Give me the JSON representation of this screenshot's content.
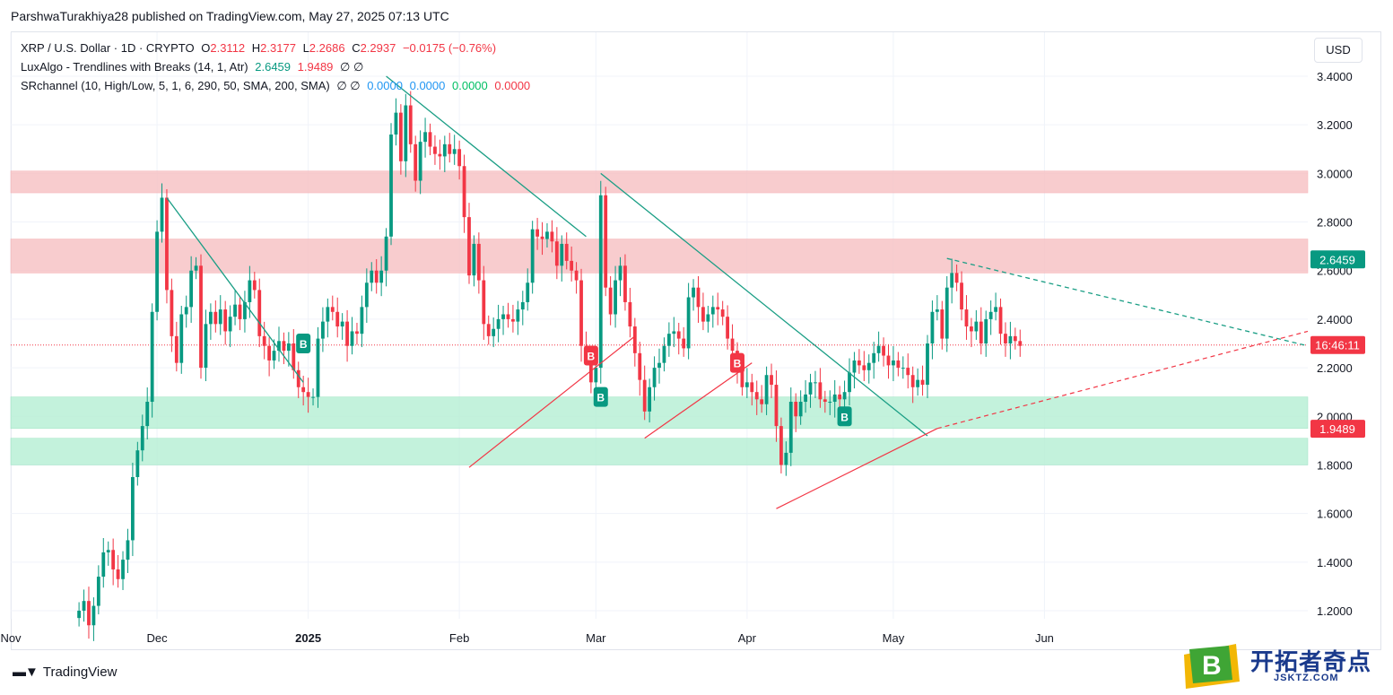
{
  "header": {
    "published": "ParshwaTurakhiya28 published on TradingView.com, May 27, 2025 07:13 UTC"
  },
  "legend": {
    "symbol": "XRP / U.S. Dollar · 1D · CRYPTO",
    "o_label": "O",
    "o_value": "2.3112",
    "h_label": "H",
    "h_value": "2.3177",
    "l_label": "L",
    "l_value": "2.2686",
    "c_label": "C",
    "c_value": "2.2937",
    "change": "−0.0175 (−0.76%)",
    "indicator1_name": "LuxAlgo - Trendlines with Breaks (14, 1, Atr)",
    "indicator1_upper": "2.6459",
    "indicator1_lower": "1.9489",
    "indicator1_extra": "∅ ∅",
    "indicator2_name": "SRchannel (10, High/Low, 5, 1, 6, 290, 50, SMA, 200, SMA)",
    "indicator2_extra": "∅ ∅",
    "indicator2_v1": "0.0000",
    "indicator2_v2": "0.0000",
    "indicator2_v3": "0.0000",
    "indicator2_v4": "0.0000"
  },
  "currency_button": "USD",
  "footer": {
    "brand": "TradingView"
  },
  "watermark": {
    "text": "开拓者奇点",
    "url": "JSKTZ.COM",
    "letter": "B"
  },
  "colors": {
    "up": "#089981",
    "down": "#f23645",
    "resistance_zone": "#f7c4c6",
    "support_zone": "#b9f0d6",
    "trend_down": "#1a9e85",
    "trend_up": "#f23645"
  },
  "chart_data": {
    "type": "candlestick",
    "y_axis": {
      "ticks": [
        "3.4000",
        "3.2000",
        "3.0000",
        "2.8000",
        "2.6000",
        "2.4000",
        "2.2000",
        "2.0000",
        "1.8000",
        "1.6000",
        "1.4000",
        "1.2000"
      ],
      "range": [
        1.12,
        3.58
      ]
    },
    "x_axis": {
      "labels": [
        {
          "text": "Nov",
          "date": "2024-11-01"
        },
        {
          "text": "Dec",
          "date": "2024-12-01"
        },
        {
          "text": "2025",
          "date": "2025-01-01",
          "bold": true
        },
        {
          "text": "Feb",
          "date": "2025-02-01"
        },
        {
          "text": "Mar",
          "date": "2025-03-01"
        },
        {
          "text": "Apr",
          "date": "2025-04-01"
        },
        {
          "text": "May",
          "date": "2025-05-01"
        },
        {
          "text": "Jun",
          "date": "2025-06-01"
        }
      ],
      "range": [
        "2024-11-01",
        "2025-07-25"
      ]
    },
    "price_labels": [
      {
        "text": "2.6459",
        "value": 2.6459,
        "color": "#089981"
      },
      {
        "text": "16:46:11",
        "value": 2.2937,
        "color": "#f23645"
      },
      {
        "text": "1.9489",
        "value": 1.9489,
        "color": "#f23645"
      }
    ],
    "zones": [
      {
        "kind": "resistance",
        "from": 2.92,
        "to": 3.01
      },
      {
        "kind": "resistance",
        "from": 2.59,
        "to": 2.73
      },
      {
        "kind": "support",
        "from": 1.95,
        "to": 2.08
      },
      {
        "kind": "support",
        "from": 1.8,
        "to": 1.91
      }
    ],
    "current_price": 2.2937,
    "trendlines_down": [
      {
        "x1": "2024-12-03",
        "y1": 2.9,
        "x2": "2024-12-31",
        "y2": 2.14,
        "dashed": false
      },
      {
        "x1": "2025-01-17",
        "y1": 3.4,
        "x2": "2025-02-27",
        "y2": 2.74,
        "dashed": false
      },
      {
        "x1": "2025-03-02",
        "y1": 3.0,
        "x2": "2025-05-08",
        "y2": 1.92,
        "dashed": false
      },
      {
        "x1": "2025-05-12",
        "y1": 2.65,
        "x2": "2025-07-25",
        "y2": 2.29,
        "dashed": true
      }
    ],
    "trendlines_up": [
      {
        "x1": "2025-02-03",
        "y1": 1.79,
        "x2": "2025-03-09",
        "y2": 2.33,
        "dashed": false
      },
      {
        "x1": "2025-03-11",
        "y1": 1.91,
        "x2": "2025-04-02",
        "y2": 2.22,
        "dashed": false
      },
      {
        "x1": "2025-04-07",
        "y1": 1.62,
        "x2": "2025-05-10",
        "y2": 1.95,
        "dashed": false
      },
      {
        "x1": "2025-05-10",
        "y1": 1.95,
        "x2": "2025-07-25",
        "y2": 2.35,
        "dashed": true
      }
    ],
    "break_labels": [
      {
        "date": "2024-12-31",
        "price": 2.3,
        "text": "B",
        "color": "#089981"
      },
      {
        "date": "2025-02-28",
        "price": 2.25,
        "text": "B",
        "color": "#f23645"
      },
      {
        "date": "2025-03-02",
        "price": 2.08,
        "text": "B",
        "color": "#089981"
      },
      {
        "date": "2025-03-30",
        "price": 2.22,
        "text": "B",
        "color": "#f23645"
      },
      {
        "date": "2025-04-21",
        "price": 2.0,
        "text": "B",
        "color": "#089981"
      }
    ],
    "closes": [
      [
        "2024-11-15",
        1.2
      ],
      [
        "2024-11-16",
        1.24
      ],
      [
        "2024-11-17",
        1.14
      ],
      [
        "2024-11-18",
        1.22
      ],
      [
        "2024-11-19",
        1.34
      ],
      [
        "2024-11-20",
        1.44
      ],
      [
        "2024-11-21",
        1.45
      ],
      [
        "2024-11-22",
        1.37
      ],
      [
        "2024-11-23",
        1.33
      ],
      [
        "2024-11-24",
        1.41
      ],
      [
        "2024-11-25",
        1.49
      ],
      [
        "2024-11-26",
        1.75
      ],
      [
        "2024-11-27",
        1.86
      ],
      [
        "2024-11-28",
        1.96
      ],
      [
        "2024-11-29",
        2.06
      ],
      [
        "2024-11-30",
        2.43
      ],
      [
        "2024-12-01",
        2.76
      ],
      [
        "2024-12-02",
        2.9
      ],
      [
        "2024-12-03",
        2.52
      ],
      [
        "2024-12-04",
        2.33
      ],
      [
        "2024-12-05",
        2.22
      ],
      [
        "2024-12-06",
        2.42
      ],
      [
        "2024-12-07",
        2.45
      ],
      [
        "2024-12-08",
        2.6
      ],
      [
        "2024-12-09",
        2.62
      ],
      [
        "2024-12-10",
        2.2
      ],
      [
        "2024-12-11",
        2.38
      ],
      [
        "2024-12-12",
        2.43
      ],
      [
        "2024-12-13",
        2.38
      ],
      [
        "2024-12-14",
        2.44
      ],
      [
        "2024-12-15",
        2.35
      ],
      [
        "2024-12-16",
        2.41
      ],
      [
        "2024-12-17",
        2.46
      ],
      [
        "2024-12-18",
        2.4
      ],
      [
        "2024-12-19",
        2.47
      ],
      [
        "2024-12-20",
        2.56
      ],
      [
        "2024-12-21",
        2.52
      ],
      [
        "2024-12-22",
        2.33
      ],
      [
        "2024-12-23",
        2.29
      ],
      [
        "2024-12-24",
        2.23
      ],
      [
        "2024-12-25",
        2.27
      ],
      [
        "2024-12-26",
        2.31
      ],
      [
        "2024-12-27",
        2.27
      ],
      [
        "2024-12-28",
        2.3
      ],
      [
        "2024-12-29",
        2.19
      ],
      [
        "2024-12-30",
        2.12
      ],
      [
        "2024-12-31",
        2.1
      ],
      [
        "2025-01-01",
        2.08
      ],
      [
        "2025-01-02",
        2.08
      ],
      [
        "2025-01-03",
        2.32
      ],
      [
        "2025-01-04",
        2.39
      ],
      [
        "2025-01-05",
        2.45
      ],
      [
        "2025-01-06",
        2.43
      ],
      [
        "2025-01-07",
        2.37
      ],
      [
        "2025-01-08",
        2.39
      ],
      [
        "2025-01-09",
        2.29
      ],
      [
        "2025-01-10",
        2.35
      ],
      [
        "2025-01-11",
        2.34
      ],
      [
        "2025-01-12",
        2.45
      ],
      [
        "2025-01-13",
        2.55
      ],
      [
        "2025-01-14",
        2.6
      ],
      [
        "2025-01-15",
        2.55
      ],
      [
        "2025-01-16",
        2.6
      ],
      [
        "2025-01-17",
        2.74
      ],
      [
        "2025-01-18",
        3.16
      ],
      [
        "2025-01-19",
        3.25
      ],
      [
        "2025-01-20",
        3.05
      ],
      [
        "2025-01-21",
        3.28
      ],
      [
        "2025-01-22",
        3.12
      ],
      [
        "2025-01-23",
        2.97
      ],
      [
        "2025-01-24",
        3.13
      ],
      [
        "2025-01-25",
        3.17
      ],
      [
        "2025-01-26",
        3.11
      ],
      [
        "2025-01-27",
        3.08
      ],
      [
        "2025-01-28",
        3.07
      ],
      [
        "2025-01-29",
        3.12
      ],
      [
        "2025-01-30",
        3.08
      ],
      [
        "2025-01-31",
        3.1
      ],
      [
        "2025-02-01",
        3.03
      ],
      [
        "2025-02-02",
        2.82
      ],
      [
        "2025-02-03",
        2.58
      ],
      [
        "2025-02-04",
        2.71
      ],
      [
        "2025-02-05",
        2.56
      ],
      [
        "2025-02-06",
        2.38
      ],
      [
        "2025-02-07",
        2.33
      ],
      [
        "2025-02-08",
        2.36
      ],
      [
        "2025-02-09",
        2.4
      ],
      [
        "2025-02-10",
        2.42
      ],
      [
        "2025-02-11",
        2.4
      ],
      [
        "2025-02-12",
        2.39
      ],
      [
        "2025-02-13",
        2.44
      ],
      [
        "2025-02-14",
        2.47
      ],
      [
        "2025-02-15",
        2.55
      ],
      [
        "2025-02-16",
        2.77
      ],
      [
        "2025-02-17",
        2.74
      ],
      [
        "2025-02-18",
        2.73
      ],
      [
        "2025-02-19",
        2.76
      ],
      [
        "2025-02-20",
        2.72
      ],
      [
        "2025-02-21",
        2.62
      ],
      [
        "2025-02-22",
        2.71
      ],
      [
        "2025-02-23",
        2.64
      ],
      [
        "2025-02-24",
        2.6
      ],
      [
        "2025-02-25",
        2.56
      ],
      [
        "2025-02-26",
        2.29
      ],
      [
        "2025-02-27",
        2.25
      ],
      [
        "2025-02-28",
        2.14
      ],
      [
        "2025-03-01",
        2.2
      ],
      [
        "2025-03-02",
        2.91
      ],
      [
        "2025-03-03",
        2.53
      ],
      [
        "2025-03-04",
        2.42
      ],
      [
        "2025-03-05",
        2.56
      ],
      [
        "2025-03-06",
        2.62
      ],
      [
        "2025-03-07",
        2.47
      ],
      [
        "2025-03-08",
        2.37
      ],
      [
        "2025-03-09",
        2.26
      ],
      [
        "2025-03-10",
        2.15
      ],
      [
        "2025-03-11",
        2.02
      ],
      [
        "2025-03-12",
        2.12
      ],
      [
        "2025-03-13",
        2.2
      ],
      [
        "2025-03-14",
        2.22
      ],
      [
        "2025-03-15",
        2.29
      ],
      [
        "2025-03-16",
        2.34
      ],
      [
        "2025-03-17",
        2.35
      ],
      [
        "2025-03-18",
        2.32
      ],
      [
        "2025-03-19",
        2.28
      ],
      [
        "2025-03-20",
        2.49
      ],
      [
        "2025-03-21",
        2.53
      ],
      [
        "2025-03-22",
        2.45
      ],
      [
        "2025-03-23",
        2.39
      ],
      [
        "2025-03-24",
        2.42
      ],
      [
        "2025-03-25",
        2.45
      ],
      [
        "2025-03-26",
        2.44
      ],
      [
        "2025-03-27",
        2.41
      ],
      [
        "2025-03-28",
        2.32
      ],
      [
        "2025-03-29",
        2.27
      ],
      [
        "2025-03-30",
        2.2
      ],
      [
        "2025-03-31",
        2.12
      ],
      [
        "2025-04-01",
        2.14
      ],
      [
        "2025-04-02",
        2.1
      ],
      [
        "2025-04-03",
        2.07
      ],
      [
        "2025-04-04",
        2.05
      ],
      [
        "2025-04-05",
        2.17
      ],
      [
        "2025-04-06",
        2.13
      ],
      [
        "2025-04-07",
        1.96
      ],
      [
        "2025-04-08",
        1.8
      ],
      [
        "2025-04-09",
        1.85
      ],
      [
        "2025-04-10",
        2.06
      ],
      [
        "2025-04-11",
        2.0
      ],
      [
        "2025-04-12",
        2.06
      ],
      [
        "2025-04-13",
        2.09
      ],
      [
        "2025-04-14",
        2.14
      ],
      [
        "2025-04-15",
        2.14
      ],
      [
        "2025-04-16",
        2.07
      ],
      [
        "2025-04-17",
        2.06
      ],
      [
        "2025-04-18",
        2.06
      ],
      [
        "2025-04-19",
        2.09
      ],
      [
        "2025-04-20",
        2.07
      ],
      [
        "2025-04-21",
        2.1
      ],
      [
        "2025-04-22",
        2.18
      ],
      [
        "2025-04-23",
        2.23
      ],
      [
        "2025-04-24",
        2.21
      ],
      [
        "2025-04-25",
        2.19
      ],
      [
        "2025-04-26",
        2.22
      ],
      [
        "2025-04-27",
        2.26
      ],
      [
        "2025-04-28",
        2.29
      ],
      [
        "2025-04-29",
        2.25
      ],
      [
        "2025-04-30",
        2.21
      ],
      [
        "2025-05-01",
        2.23
      ],
      [
        "2025-05-02",
        2.2
      ],
      [
        "2025-05-03",
        2.2
      ],
      [
        "2025-05-04",
        2.17
      ],
      [
        "2025-05-05",
        2.12
      ],
      [
        "2025-05-06",
        2.15
      ],
      [
        "2025-05-07",
        2.13
      ],
      [
        "2025-05-08",
        2.3
      ],
      [
        "2025-05-09",
        2.43
      ],
      [
        "2025-05-10",
        2.44
      ],
      [
        "2025-05-11",
        2.32
      ],
      [
        "2025-05-12",
        2.53
      ],
      [
        "2025-05-13",
        2.59
      ],
      [
        "2025-05-14",
        2.55
      ],
      [
        "2025-05-15",
        2.44
      ],
      [
        "2025-05-16",
        2.37
      ],
      [
        "2025-05-17",
        2.35
      ],
      [
        "2025-05-18",
        2.39
      ],
      [
        "2025-05-19",
        2.3
      ],
      [
        "2025-05-20",
        2.4
      ],
      [
        "2025-05-21",
        2.43
      ],
      [
        "2025-05-22",
        2.45
      ],
      [
        "2025-05-23",
        2.34
      ],
      [
        "2025-05-24",
        2.3
      ],
      [
        "2025-05-25",
        2.33
      ],
      [
        "2025-05-26",
        2.31
      ],
      [
        "2025-05-27",
        2.29
      ]
    ]
  }
}
